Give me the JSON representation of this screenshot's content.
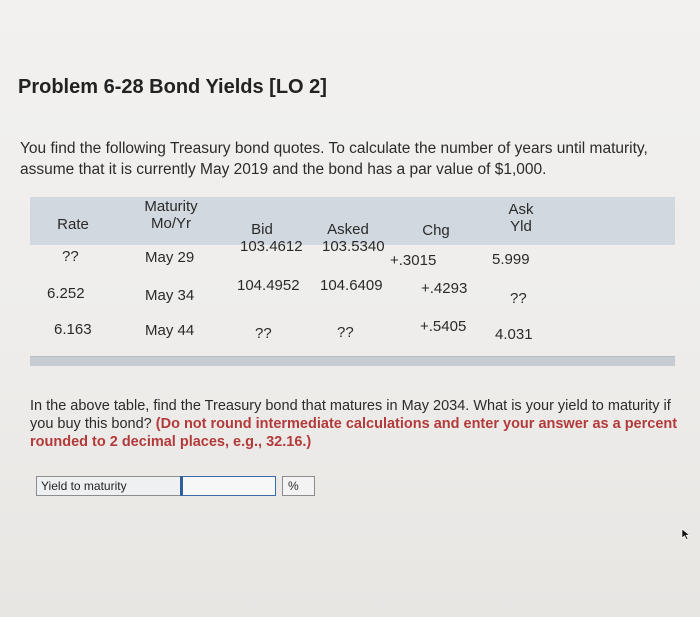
{
  "problem": {
    "title": "Problem 6-28 Bond Yields [LO 2]",
    "intro": "You find the following Treasury bond quotes. To calculate the number of years until maturity, assume that it is currently May 2019 and the bond has a par value of $1,000."
  },
  "table": {
    "headers": {
      "rate": "Rate",
      "maturity_line1": "Maturity",
      "maturity_line2": "Mo/Yr",
      "bid": "Bid",
      "asked": "Asked",
      "chg": "Chg",
      "ask_yld_line1": "Ask",
      "ask_yld_line2": "Yld"
    },
    "rows": [
      {
        "rate": "??",
        "maturity": "May 29",
        "bid": "103.4612",
        "asked": "103.5340",
        "chg": "+.3015",
        "ask_yld": "5.999"
      },
      {
        "rate": "6.252",
        "maturity": "May 34",
        "bid": "104.4952",
        "asked": "104.6409",
        "chg": "+.4293",
        "ask_yld": "??"
      },
      {
        "rate": "6.163",
        "maturity": "May 44",
        "bid": "??",
        "asked": "??",
        "chg": "+.5405",
        "ask_yld": "4.031"
      }
    ]
  },
  "question": {
    "text": "In the above table, find the Treasury bond that matures in May 2034. What is your yield to maturity if you buy this bond?",
    "instruction": "(Do not round intermediate calculations and enter your answer as a percent rounded to 2 decimal places, e.g., 32.16.)"
  },
  "answer": {
    "label": "Yield to maturity",
    "value": "",
    "unit": "%"
  },
  "icons": {
    "cursor": "mouse-pointer-icon"
  }
}
